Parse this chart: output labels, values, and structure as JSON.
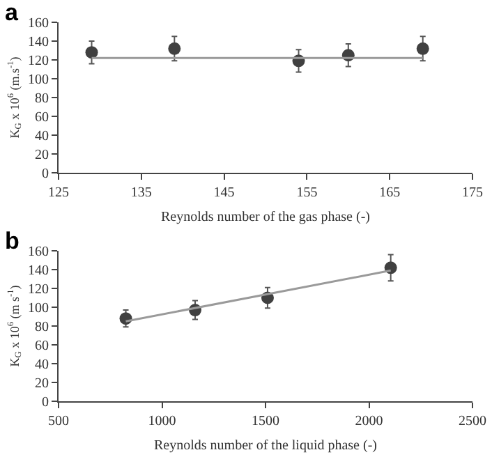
{
  "chart_data": [
    {
      "type": "scatter",
      "title": "a",
      "xlabel": "Reynolds number of the gas phase (-)",
      "ylabel": "K$_{G}$ x 10$^{6}$ (m.s$^{-1}$)",
      "x": [
        129,
        139,
        154,
        160,
        169
      ],
      "xlim": [
        125,
        175
      ],
      "xticks": [
        125,
        135,
        145,
        155,
        165,
        175
      ],
      "ylim": [
        0,
        160
      ],
      "yticks": [
        0,
        20,
        40,
        60,
        80,
        100,
        120,
        140,
        160
      ],
      "series": [
        {
          "color": "#404040",
          "marker": "circle",
          "values": [
            128,
            132,
            119,
            125,
            132
          ],
          "errors": [
            12,
            13,
            12,
            12,
            13
          ]
        },
        {
          "type": "line",
          "marker": "none",
          "color": "#9a9a9a",
          "x": [
            129,
            169
          ],
          "values": [
            122,
            122
          ]
        }
      ]
    },
    {
      "type": "scatter",
      "title": "b",
      "xlabel": "Reynolds number of the liquid phase (-)",
      "ylabel": "K$_{G}$ x 10$^{6}$ (m s$^{-1}$)",
      "x": [
        825,
        1160,
        1510,
        2105
      ],
      "xlim": [
        500,
        2500
      ],
      "xticks": [
        500,
        1000,
        1500,
        2000,
        2500
      ],
      "ylim": [
        0,
        160
      ],
      "yticks": [
        0,
        20,
        40,
        60,
        80,
        100,
        120,
        140,
        160
      ],
      "series": [
        {
          "color": "#404040",
          "marker": "circle",
          "values": [
            88,
            97,
            110,
            142
          ],
          "errors": [
            9,
            10,
            11,
            14
          ]
        },
        {
          "type": "line",
          "marker": "none",
          "color": "#9a9a9a",
          "x": [
            825,
            2105
          ],
          "values": [
            85,
            139
          ]
        }
      ]
    }
  ]
}
